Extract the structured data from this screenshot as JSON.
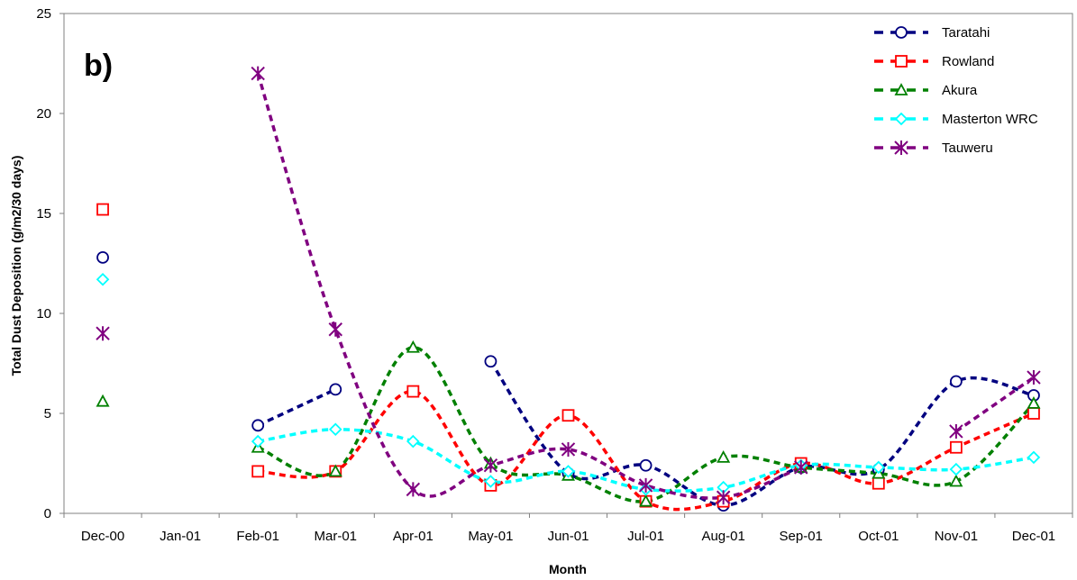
{
  "chart_data": {
    "type": "line",
    "panel_label": "b)",
    "xlabel": "Month",
    "ylabel": "Total Dust Deposition (g/m2/30 days)",
    "ylim": [
      0,
      25
    ],
    "yticks": [
      0,
      5,
      10,
      15,
      20,
      25
    ],
    "categories": [
      "Dec-00",
      "Jan-01",
      "Feb-01",
      "Mar-01",
      "Apr-01",
      "May-01",
      "Jun-01",
      "Jul-01",
      "Aug-01",
      "Sep-01",
      "Oct-01",
      "Nov-01",
      "Dec-01"
    ],
    "legend_position": "top-right",
    "grid": false,
    "series": [
      {
        "name": "Taratahi",
        "color": "#000080",
        "marker": "circle",
        "values": [
          12.8,
          null,
          4.4,
          6.2,
          null,
          7.6,
          2.0,
          2.4,
          0.4,
          2.3,
          2.2,
          6.6,
          5.9
        ]
      },
      {
        "name": "Rowland",
        "color": "#FF0000",
        "marker": "square",
        "values": [
          15.2,
          null,
          2.1,
          2.1,
          6.1,
          1.4,
          4.9,
          0.6,
          0.6,
          2.5,
          1.5,
          3.3,
          5.0
        ]
      },
      {
        "name": "Akura",
        "color": "#008000",
        "marker": "triangle",
        "values": [
          5.6,
          null,
          3.3,
          2.1,
          8.3,
          2.5,
          1.9,
          0.6,
          2.8,
          2.3,
          2.0,
          1.6,
          5.5
        ]
      },
      {
        "name": "Masterton WRC",
        "color": "#00FFFF",
        "marker": "diamond",
        "values": [
          11.7,
          null,
          3.6,
          4.2,
          3.6,
          1.6,
          2.1,
          1.2,
          1.3,
          2.4,
          2.3,
          2.2,
          2.8
        ]
      },
      {
        "name": "Tauweru",
        "color": "#800080",
        "marker": "asterisk",
        "values": [
          9.0,
          null,
          22.0,
          9.2,
          1.2,
          2.4,
          3.2,
          1.4,
          0.8,
          2.3,
          null,
          4.1,
          6.8
        ]
      }
    ]
  }
}
